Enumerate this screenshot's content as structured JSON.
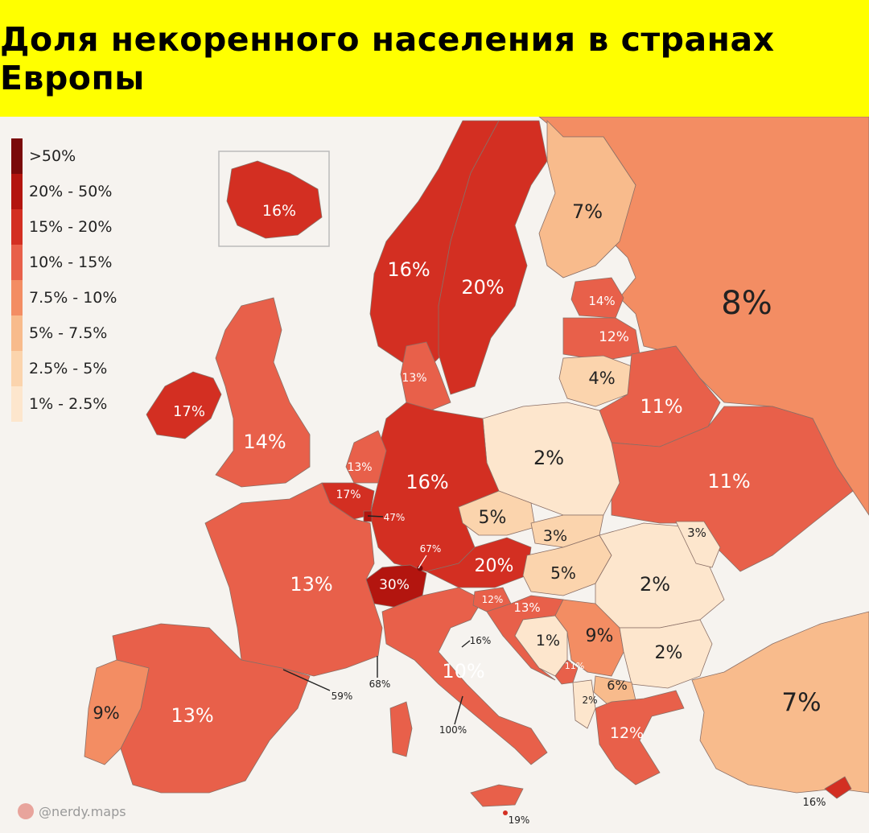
{
  "title": "Доля некоренного населения в странах Европы",
  "legend": [
    {
      "label": ">50%",
      "color": "#7a0a0a"
    },
    {
      "label": "20% - 50%",
      "color": "#b3150f"
    },
    {
      "label": "15% - 20%",
      "color": "#d32f22"
    },
    {
      "label": "10% - 15%",
      "color": "#e8604a"
    },
    {
      "label": "7.5% - 10%",
      "color": "#f38d63"
    },
    {
      "label": "5% - 7.5%",
      "color": "#f8bb8c"
    },
    {
      "label": "2.5% - 5%",
      "color": "#fbd4ad"
    },
    {
      "label": "1% - 2.5%",
      "color": "#fde6cd"
    }
  ],
  "countries": [
    {
      "name": "Iceland",
      "value": "16%"
    },
    {
      "name": "Norway",
      "value": "16%"
    },
    {
      "name": "Sweden",
      "value": "20%"
    },
    {
      "name": "Finland",
      "value": "7%"
    },
    {
      "name": "Russia",
      "value": "8%"
    },
    {
      "name": "Estonia",
      "value": "14%"
    },
    {
      "name": "Latvia",
      "value": "12%"
    },
    {
      "name": "Lithuania",
      "value": "4%"
    },
    {
      "name": "Belarus",
      "value": "11%"
    },
    {
      "name": "Denmark",
      "value": "13%"
    },
    {
      "name": "Ireland",
      "value": "17%"
    },
    {
      "name": "United Kingdom",
      "value": "14%"
    },
    {
      "name": "Netherlands",
      "value": "13%"
    },
    {
      "name": "Belgium",
      "value": "17%"
    },
    {
      "name": "Luxembourg",
      "value": "47%"
    },
    {
      "name": "Germany",
      "value": "16%"
    },
    {
      "name": "Poland",
      "value": "2%"
    },
    {
      "name": "Ukraine",
      "value": "11%"
    },
    {
      "name": "Czechia",
      "value": "5%"
    },
    {
      "name": "Slovakia",
      "value": "3%"
    },
    {
      "name": "Moldova",
      "value": "3%"
    },
    {
      "name": "Liechtenstein",
      "value": "67%"
    },
    {
      "name": "Austria",
      "value": "20%"
    },
    {
      "name": "Hungary",
      "value": "5%"
    },
    {
      "name": "Romania",
      "value": "2%"
    },
    {
      "name": "Switzerland",
      "value": "30%"
    },
    {
      "name": "France",
      "value": "13%"
    },
    {
      "name": "Slovenia",
      "value": "12%"
    },
    {
      "name": "Croatia",
      "value": "13%"
    },
    {
      "name": "Bosnia and Herzegovina",
      "value": "1%"
    },
    {
      "name": "Serbia",
      "value": "9%"
    },
    {
      "name": "San Marino",
      "value": "16%"
    },
    {
      "name": "Montenegro",
      "value": "11%"
    },
    {
      "name": "Bulgaria",
      "value": "2%"
    },
    {
      "name": "North Macedonia",
      "value": "6%"
    },
    {
      "name": "Albania",
      "value": "2%"
    },
    {
      "name": "Monaco",
      "value": "68%"
    },
    {
      "name": "Andorra",
      "value": "59%"
    },
    {
      "name": "Italy",
      "value": "10%"
    },
    {
      "name": "Vatican City",
      "value": "100%"
    },
    {
      "name": "Portugal",
      "value": "9%"
    },
    {
      "name": "Spain",
      "value": "13%"
    },
    {
      "name": "Turkey",
      "value": "7%"
    },
    {
      "name": "Greece",
      "value": "12%"
    },
    {
      "name": "Malta",
      "value": "19%"
    },
    {
      "name": "Cyprus",
      "value": "16%"
    }
  ],
  "brand": "@nerdy.maps"
}
